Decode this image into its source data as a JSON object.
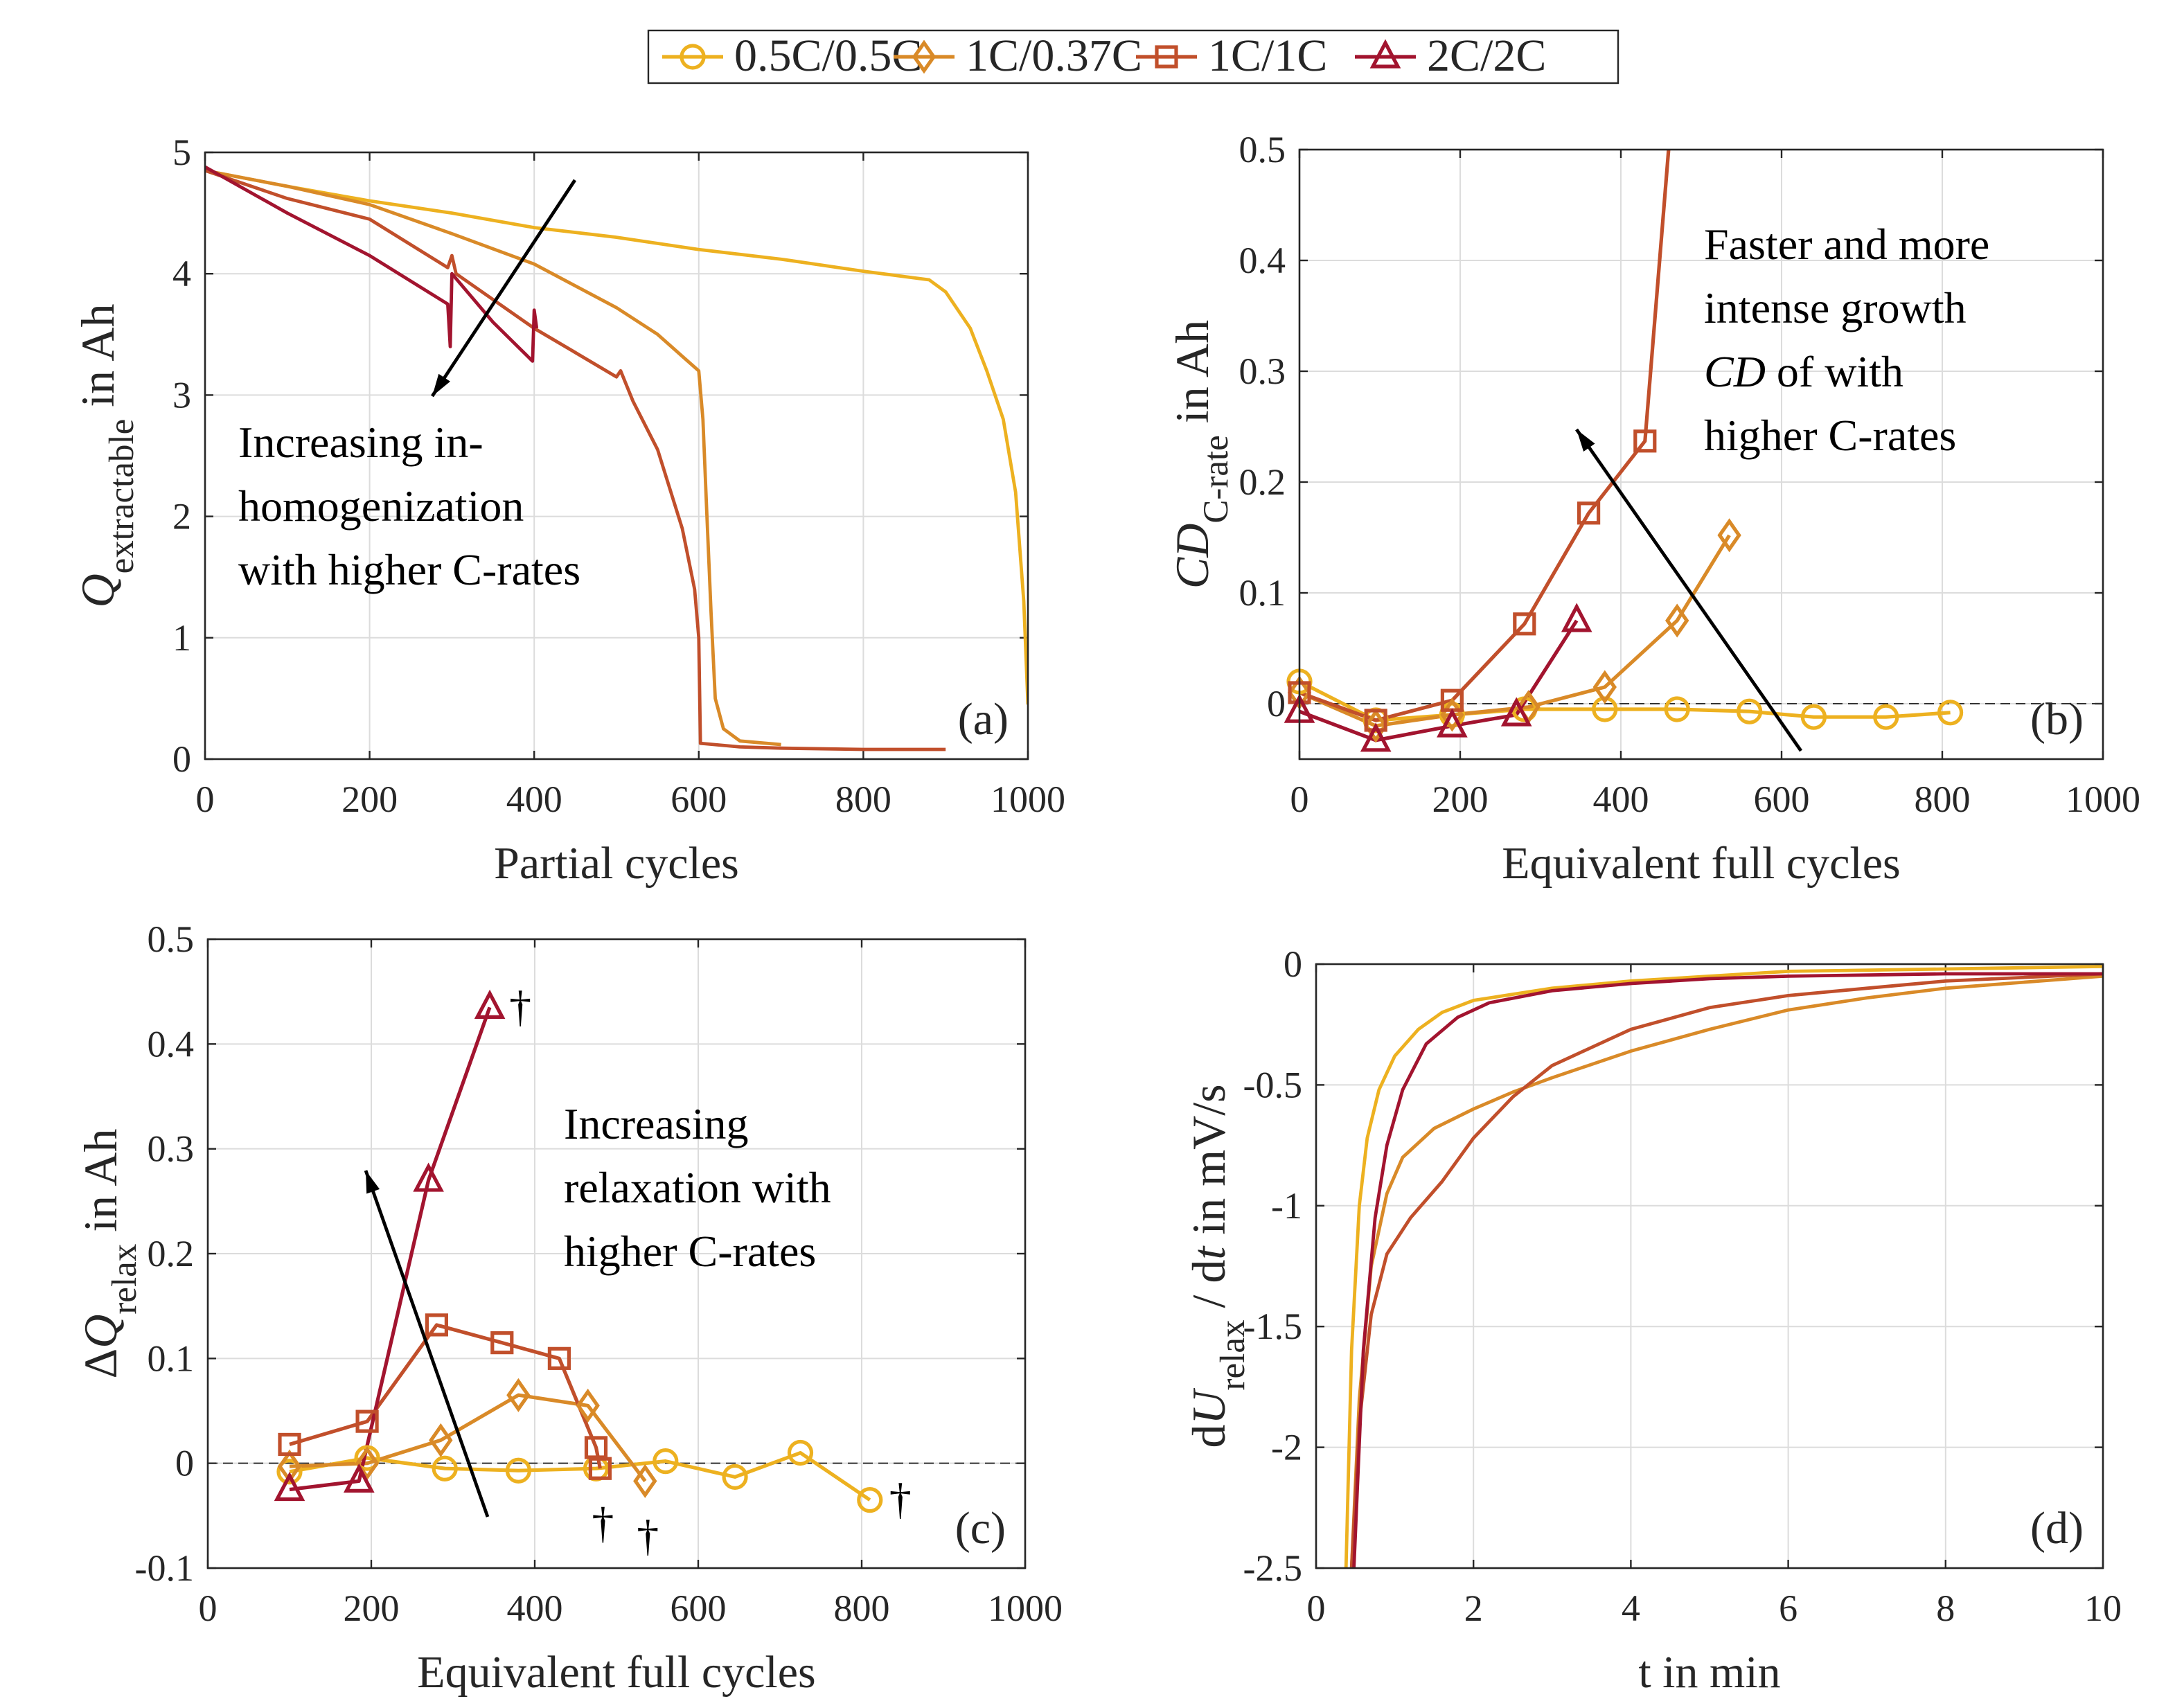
{
  "legend": {
    "placement": "top-center",
    "entries": [
      {
        "name": "0.5C/0.5C",
        "color": "#EDB120",
        "marker": "circle"
      },
      {
        "name": "1C/0.37C",
        "color": "#D98A28",
        "marker": "diamond"
      },
      {
        "name": "1C/1C",
        "color": "#C14F2B",
        "marker": "square"
      },
      {
        "name": "2C/2C",
        "color": "#A2142F",
        "marker": "triangle"
      }
    ]
  },
  "chart_data": [
    {
      "panel": "(a)",
      "type": "line",
      "grid": true,
      "xlabel": "Partial cycles",
      "ylabel": [
        {
          "t": "Q",
          "s": "i"
        },
        {
          "t": "extractable",
          "s": "sub"
        },
        {
          "t": " in Ah"
        }
      ],
      "xlim": [
        0,
        1000
      ],
      "ylim": [
        0,
        5
      ],
      "xticks": [
        "0",
        "200",
        "400",
        "600",
        "800",
        "1000"
      ],
      "yticks": [
        "0",
        "1",
        "2",
        "3",
        "4",
        "5"
      ],
      "annotation": [
        [
          {
            "t": "Increasing in-"
          }
        ],
        [
          {
            "t": "homogenization"
          }
        ],
        [
          {
            "t": "with higher C-rates"
          }
        ]
      ],
      "series": [
        {
          "x": [
            0,
            100,
            200,
            300,
            400,
            500,
            600,
            700,
            800,
            880,
            900,
            930,
            950,
            970,
            985,
            995,
            1000
          ],
          "y": [
            4.85,
            4.72,
            4.6,
            4.5,
            4.38,
            4.3,
            4.2,
            4.12,
            4.02,
            3.95,
            3.85,
            3.55,
            3.2,
            2.8,
            2.2,
            1.3,
            0.45
          ]
        },
        {
          "x": [
            0,
            100,
            200,
            300,
            400,
            450,
            500,
            550,
            580,
            600,
            605,
            610,
            615,
            620,
            630,
            650,
            700
          ],
          "y": [
            4.85,
            4.72,
            4.57,
            4.33,
            4.08,
            3.9,
            3.72,
            3.5,
            3.32,
            3.2,
            2.8,
            2.0,
            1.2,
            0.5,
            0.25,
            0.15,
            0.12
          ]
        },
        {
          "x": [
            0,
            100,
            200,
            295,
            300,
            305,
            400,
            450,
            500,
            505,
            520,
            550,
            580,
            595,
            600,
            602,
            650,
            700,
            800,
            900
          ],
          "y": [
            4.85,
            4.62,
            4.45,
            4.05,
            4.15,
            4.0,
            3.55,
            3.35,
            3.15,
            3.2,
            2.95,
            2.55,
            1.9,
            1.4,
            1.0,
            0.13,
            0.1,
            0.09,
            0.08,
            0.08
          ]
        },
        {
          "x": [
            0,
            100,
            200,
            295,
            298,
            300,
            350,
            398,
            400,
            403
          ],
          "y": [
            4.88,
            4.5,
            4.15,
            3.75,
            3.4,
            4.0,
            3.6,
            3.28,
            3.7,
            3.55
          ]
        }
      ]
    },
    {
      "panel": "(b)",
      "type": "line",
      "grid": true,
      "xlabel": "Equivalent full cycles",
      "ylabel": [
        {
          "t": "CD",
          "s": "i"
        },
        {
          "t": "C-rate",
          "s": "sub"
        },
        {
          "t": " in Ah"
        }
      ],
      "xlim": [
        0,
        1000
      ],
      "ylim": [
        -0.05,
        0.5
      ],
      "xticks": [
        "0",
        "200",
        "400",
        "600",
        "800",
        "1000"
      ],
      "yticks": [
        "0",
        "0.1",
        "0.2",
        "0.3",
        "0.4",
        "0.5"
      ],
      "annotation": [
        [
          {
            "t": "Faster and more"
          }
        ],
        [
          {
            "t": "intense growth"
          }
        ],
        [
          {
            "t": "CD",
            "s": "i"
          },
          {
            "t": " of with"
          }
        ],
        [
          {
            "t": "higher C-rates"
          }
        ]
      ],
      "series": [
        {
          "x": [
            0,
            95,
            190,
            280,
            380,
            470,
            560,
            640,
            730,
            810
          ],
          "y": [
            0.02,
            -0.015,
            -0.01,
            -0.005,
            -0.005,
            -0.005,
            -0.007,
            -0.012,
            -0.012,
            -0.008
          ]
        },
        {
          "x": [
            0,
            95,
            190,
            285,
            380,
            470,
            535
          ],
          "y": [
            0.01,
            -0.02,
            -0.01,
            -0.003,
            0.015,
            0.075,
            0.152
          ]
        },
        {
          "x": [
            0,
            95,
            190,
            280,
            360,
            430,
            465
          ],
          "y": [
            0.01,
            -0.015,
            0.003,
            0.072,
            0.172,
            0.237,
            0.55
          ],
          "unmarked_last": true
        },
        {
          "x": [
            0,
            95,
            190,
            270,
            345
          ],
          "y": [
            -0.007,
            -0.033,
            -0.02,
            -0.01,
            0.075
          ]
        }
      ]
    },
    {
      "panel": "(c)",
      "type": "line",
      "grid": true,
      "xlabel": "Equivalent full cycles",
      "ylabel": [
        {
          "t": "Δ"
        },
        {
          "t": "Q",
          "s": "i"
        },
        {
          "t": "relax",
          "s": "sub"
        },
        {
          "t": " in Ah"
        }
      ],
      "xlim": [
        0,
        1000
      ],
      "ylim": [
        -0.1,
        0.5
      ],
      "xticks": [
        "0",
        "200",
        "400",
        "600",
        "800",
        "1000"
      ],
      "yticks": [
        "-0.1",
        "0",
        "0.1",
        "0.2",
        "0.3",
        "0.4",
        "0.5"
      ],
      "annotation": [
        [
          {
            "t": "Increasing"
          }
        ],
        [
          {
            "t": "relaxation with"
          }
        ],
        [
          {
            "t": "higher C-rates"
          }
        ]
      ],
      "dagger": "†",
      "series": [
        {
          "x": [
            100,
            195,
            290,
            380,
            475,
            560,
            645,
            725,
            810
          ],
          "y": [
            -0.008,
            0.005,
            -0.005,
            -0.007,
            -0.005,
            0.002,
            -0.013,
            0.01,
            -0.035
          ]
        },
        {
          "x": [
            100,
            195,
            285,
            380,
            465,
            535
          ],
          "y": [
            -0.003,
            0,
            0.022,
            0.065,
            0.055,
            -0.017
          ]
        },
        {
          "x": [
            100,
            195,
            280,
            360,
            430,
            475,
            480
          ],
          "y": [
            0.018,
            0.04,
            0.132,
            0.115,
            0.1,
            0.015,
            -0.005
          ]
        },
        {
          "x": [
            100,
            185,
            270,
            345
          ],
          "y": [
            -0.025,
            -0.017,
            0.27,
            0.435
          ]
        }
      ]
    },
    {
      "panel": "(d)",
      "type": "line",
      "grid": true,
      "xlabel": "t in min",
      "ylabel": [
        {
          "t": "d"
        },
        {
          "t": "U",
          "s": "i"
        },
        {
          "t": "relax",
          "s": "sub"
        },
        {
          "t": " / d"
        },
        {
          "t": "t",
          "s": "i"
        },
        {
          "t": " in mV/s"
        }
      ],
      "xlim": [
        0,
        10
      ],
      "ylim": [
        -2.5,
        0
      ],
      "xticks": [
        "0",
        "2",
        "4",
        "6",
        "8",
        "10"
      ],
      "yticks": [
        "-2.5",
        "-2",
        "-1.5",
        "-1",
        "-0.5",
        "0"
      ],
      "series": [
        {
          "x": [
            0.38,
            0.45,
            0.55,
            0.65,
            0.8,
            1,
            1.3,
            1.6,
            2,
            3,
            4,
            5,
            6,
            8,
            10
          ],
          "y": [
            -2.5,
            -1.6,
            -1.0,
            -0.72,
            -0.52,
            -0.38,
            -0.27,
            -0.2,
            -0.15,
            -0.1,
            -0.07,
            -0.05,
            -0.03,
            -0.02,
            -0.01
          ]
        },
        {
          "x": [
            0.45,
            0.55,
            0.7,
            0.9,
            1.1,
            1.5,
            2,
            2.5,
            3,
            4,
            5,
            6,
            7,
            8,
            10
          ],
          "y": [
            -2.5,
            -1.8,
            -1.25,
            -0.95,
            -0.8,
            -0.68,
            -0.6,
            -0.53,
            -0.47,
            -0.36,
            -0.27,
            -0.19,
            -0.14,
            -0.1,
            -0.05
          ]
        },
        {
          "x": [
            0.45,
            0.55,
            0.7,
            0.9,
            1.2,
            1.6,
            2,
            2.5,
            3,
            4,
            5,
            6,
            7,
            8,
            10
          ],
          "y": [
            -2.5,
            -1.9,
            -1.45,
            -1.2,
            -1.05,
            -0.9,
            -0.72,
            -0.55,
            -0.42,
            -0.27,
            -0.18,
            -0.13,
            -0.1,
            -0.07,
            -0.04
          ]
        },
        {
          "x": [
            0.48,
            0.6,
            0.75,
            0.9,
            1.1,
            1.4,
            1.8,
            2.2,
            3,
            4,
            5,
            6,
            8,
            10
          ],
          "y": [
            -2.5,
            -1.6,
            -1.05,
            -0.75,
            -0.52,
            -0.33,
            -0.22,
            -0.16,
            -0.11,
            -0.08,
            -0.06,
            -0.05,
            -0.04,
            -0.04
          ]
        }
      ]
    }
  ]
}
